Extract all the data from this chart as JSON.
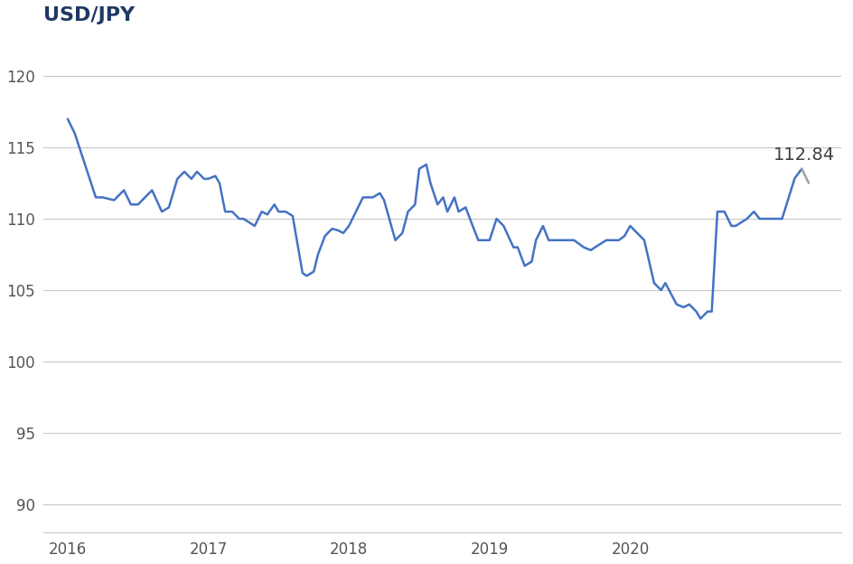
{
  "title": "USD/JPY",
  "title_color": "#1f3864",
  "line_color": "#4472c4",
  "line_color_end": "#a0a0a0",
  "annotation_value": "112.84",
  "annotation_color": "#404040",
  "background_color": "#ffffff",
  "grid_color": "#c8c8c8",
  "ylim": [
    88,
    123
  ],
  "yticks": [
    90,
    95,
    100,
    105,
    110,
    115,
    120
  ],
  "xlim_start": 2015.83,
  "xlim_end": 2021.5,
  "xtick_labels": [
    "2016",
    "2017",
    "2018",
    "2019",
    "2020",
    ""
  ],
  "xtick_positions": [
    2016,
    2017,
    2018,
    2019,
    2020,
    2021.25
  ],
  "data": [
    [
      2016.0,
      117.0
    ],
    [
      2016.05,
      116.0
    ],
    [
      2016.1,
      114.5
    ],
    [
      2016.15,
      113.0
    ],
    [
      2016.2,
      111.5
    ],
    [
      2016.25,
      111.5
    ],
    [
      2016.33,
      111.3
    ],
    [
      2016.4,
      112.0
    ],
    [
      2016.45,
      111.0
    ],
    [
      2016.5,
      111.0
    ],
    [
      2016.55,
      111.5
    ],
    [
      2016.6,
      112.0
    ],
    [
      2016.67,
      110.5
    ],
    [
      2016.72,
      110.8
    ],
    [
      2016.78,
      112.8
    ],
    [
      2016.83,
      113.3
    ],
    [
      2016.88,
      112.8
    ],
    [
      2016.92,
      113.3
    ],
    [
      2016.97,
      112.8
    ],
    [
      2017.0,
      112.8
    ],
    [
      2017.05,
      113.0
    ],
    [
      2017.08,
      112.5
    ],
    [
      2017.12,
      110.5
    ],
    [
      2017.17,
      110.5
    ],
    [
      2017.22,
      110.0
    ],
    [
      2017.25,
      110.0
    ],
    [
      2017.33,
      109.5
    ],
    [
      2017.38,
      110.5
    ],
    [
      2017.42,
      110.3
    ],
    [
      2017.47,
      111.0
    ],
    [
      2017.5,
      110.5
    ],
    [
      2017.55,
      110.5
    ],
    [
      2017.6,
      110.2
    ],
    [
      2017.67,
      106.2
    ],
    [
      2017.7,
      106.0
    ],
    [
      2017.75,
      106.3
    ],
    [
      2017.78,
      107.5
    ],
    [
      2017.83,
      108.8
    ],
    [
      2017.88,
      109.3
    ],
    [
      2017.92,
      109.2
    ],
    [
      2017.96,
      109.0
    ],
    [
      2018.0,
      109.5
    ],
    [
      2018.05,
      110.5
    ],
    [
      2018.1,
      111.5
    ],
    [
      2018.17,
      111.5
    ],
    [
      2018.22,
      111.8
    ],
    [
      2018.25,
      111.3
    ],
    [
      2018.33,
      108.5
    ],
    [
      2018.38,
      109.0
    ],
    [
      2018.42,
      110.5
    ],
    [
      2018.47,
      111.0
    ],
    [
      2018.5,
      113.5
    ],
    [
      2018.55,
      113.8
    ],
    [
      2018.58,
      112.5
    ],
    [
      2018.63,
      111.0
    ],
    [
      2018.67,
      111.5
    ],
    [
      2018.7,
      110.5
    ],
    [
      2018.75,
      111.5
    ],
    [
      2018.78,
      110.5
    ],
    [
      2018.83,
      110.8
    ],
    [
      2018.88,
      109.5
    ],
    [
      2018.92,
      108.5
    ],
    [
      2018.96,
      108.5
    ],
    [
      2019.0,
      108.5
    ],
    [
      2019.05,
      110.0
    ],
    [
      2019.1,
      109.5
    ],
    [
      2019.17,
      108.0
    ],
    [
      2019.2,
      108.0
    ],
    [
      2019.25,
      106.7
    ],
    [
      2019.3,
      107.0
    ],
    [
      2019.33,
      108.5
    ],
    [
      2019.38,
      109.5
    ],
    [
      2019.42,
      108.5
    ],
    [
      2019.47,
      108.5
    ],
    [
      2019.5,
      108.5
    ],
    [
      2019.55,
      108.5
    ],
    [
      2019.6,
      108.5
    ],
    [
      2019.67,
      108.0
    ],
    [
      2019.72,
      107.8
    ],
    [
      2019.75,
      108.0
    ],
    [
      2019.83,
      108.5
    ],
    [
      2019.88,
      108.5
    ],
    [
      2019.92,
      108.5
    ],
    [
      2019.96,
      108.8
    ],
    [
      2020.0,
      109.5
    ],
    [
      2020.05,
      109.0
    ],
    [
      2020.1,
      108.5
    ],
    [
      2020.17,
      105.5
    ],
    [
      2020.22,
      105.0
    ],
    [
      2020.25,
      105.5
    ],
    [
      2020.33,
      104.0
    ],
    [
      2020.38,
      103.8
    ],
    [
      2020.42,
      104.0
    ],
    [
      2020.47,
      103.5
    ],
    [
      2020.5,
      103.0
    ],
    [
      2020.55,
      103.5
    ],
    [
      2020.58,
      103.5
    ],
    [
      2020.62,
      110.5
    ],
    [
      2020.67,
      110.5
    ],
    [
      2020.72,
      109.5
    ],
    [
      2020.75,
      109.5
    ],
    [
      2020.83,
      110.0
    ],
    [
      2020.88,
      110.5
    ],
    [
      2020.92,
      110.0
    ],
    [
      2020.96,
      110.0
    ],
    [
      2021.0,
      110.0
    ],
    [
      2021.08,
      110.0
    ],
    [
      2021.17,
      112.84
    ],
    [
      2021.22,
      113.5
    ],
    [
      2021.27,
      112.5
    ]
  ]
}
